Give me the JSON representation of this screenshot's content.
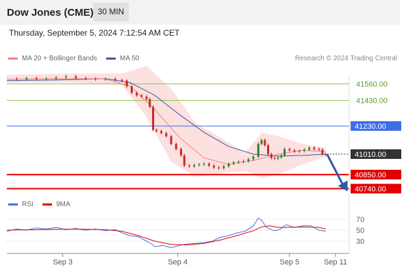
{
  "header": {
    "title": "Dow Jones (CME)",
    "timeframe": "30 MIN"
  },
  "timestamp": "Thursday, September 5, 2024 7:12:54 AM CET",
  "legend": {
    "ma20": "MA 20 + Bollinger Bands",
    "ma50": "MA 50",
    "rsi": "RSI",
    "ma9": "9MA"
  },
  "credit": "Research © 2024 Trading Central",
  "colors": {
    "resistance": "#8bc34a",
    "pivot": "#3b6fe8",
    "support": "#e00000",
    "current": "#333333",
    "ma20": "#f08080",
    "ma50": "#3b5b9a",
    "bands": "#fde0e0",
    "bull": "#2e7d32",
    "bear": "#c62828",
    "arrow": "#2e5aa8"
  },
  "chart_data": [
    {
      "type": "line",
      "subtype": "candlestick",
      "title": "Dow Jones (CME)",
      "x_ticks": [
        "Sep 3",
        "Sep 4",
        "Sep 5",
        "Sep 11"
      ],
      "y_ticks": [
        "41560.00",
        "41430.00",
        "41230.00",
        "41010.00",
        "40850.00",
        "40740.00"
      ],
      "ylim": [
        40700,
        41700
      ],
      "levels": [
        {
          "label": "41560.00",
          "value": 41560,
          "kind": "resistance"
        },
        {
          "label": "41430.00",
          "value": 41430,
          "kind": "resistance"
        },
        {
          "label": "41230.00",
          "value": 41230,
          "kind": "pivot"
        },
        {
          "label": "41010.00",
          "value": 41010,
          "kind": "current"
        },
        {
          "label": "40850.00",
          "value": 40850,
          "kind": "support"
        },
        {
          "label": "40740.00",
          "value": 40740,
          "kind": "support"
        }
      ],
      "forecast_arrow": {
        "from": 41010,
        "to": 40740,
        "direction": "down"
      },
      "price_path": [
        [
          0,
          41600
        ],
        [
          6,
          41595
        ],
        [
          12,
          41605
        ],
        [
          18,
          41598
        ],
        [
          24,
          41602
        ],
        [
          30,
          41610
        ],
        [
          36,
          41618
        ],
        [
          42,
          41605
        ],
        [
          48,
          41600
        ],
        [
          54,
          41595
        ],
        [
          60,
          41598
        ],
        [
          66,
          41590
        ],
        [
          70,
          41585
        ],
        [
          73,
          41540
        ],
        [
          76,
          41490
        ],
        [
          79,
          41470
        ],
        [
          82,
          41460
        ],
        [
          85,
          41440
        ],
        [
          87,
          41380
        ],
        [
          89,
          41200
        ],
        [
          91,
          41190
        ],
        [
          94,
          41175
        ],
        [
          97,
          41150
        ],
        [
          100,
          41090
        ],
        [
          103,
          41050
        ],
        [
          106,
          41000
        ],
        [
          108,
          40920
        ],
        [
          111,
          40915
        ],
        [
          114,
          40925
        ],
        [
          117,
          40930
        ],
        [
          120,
          40935
        ],
        [
          123,
          40920
        ],
        [
          126,
          40905
        ],
        [
          129,
          40900
        ],
        [
          132,
          40915
        ],
        [
          135,
          40935
        ],
        [
          138,
          40945
        ],
        [
          141,
          40950
        ],
        [
          144,
          40955
        ],
        [
          147,
          40970
        ],
        [
          150,
          40990
        ],
        [
          153,
          41090
        ],
        [
          155,
          41120
        ],
        [
          157,
          41080
        ],
        [
          159,
          41010
        ],
        [
          161,
          40980
        ],
        [
          163,
          40975
        ],
        [
          165,
          40985
        ],
        [
          167,
          41000
        ],
        [
          169,
          41050
        ],
        [
          172,
          41040
        ],
        [
          175,
          41030
        ],
        [
          178,
          41035
        ],
        [
          181,
          41045
        ],
        [
          184,
          41060
        ],
        [
          187,
          41050
        ],
        [
          190,
          41045
        ],
        [
          192,
          41010
        ],
        [
          194,
          41005
        ]
      ],
      "ma50_path": [
        [
          0,
          41585
        ],
        [
          30,
          41590
        ],
        [
          60,
          41600
        ],
        [
          75,
          41570
        ],
        [
          90,
          41470
        ],
        [
          105,
          41320
        ],
        [
          120,
          41180
        ],
        [
          135,
          41070
        ],
        [
          150,
          41010
        ],
        [
          165,
          40995
        ],
        [
          180,
          41000
        ],
        [
          194,
          41010
        ]
      ],
      "ma20_path": [
        [
          0,
          41595
        ],
        [
          30,
          41600
        ],
        [
          60,
          41598
        ],
        [
          75,
          41540
        ],
        [
          90,
          41360
        ],
        [
          105,
          41140
        ],
        [
          120,
          40980
        ],
        [
          135,
          40930
        ],
        [
          150,
          40960
        ],
        [
          165,
          41010
        ],
        [
          180,
          41040
        ],
        [
          194,
          41030
        ]
      ],
      "bb_upper": [
        [
          0,
          41630
        ],
        [
          40,
          41640
        ],
        [
          70,
          41640
        ],
        [
          85,
          41700
        ],
        [
          100,
          41520
        ],
        [
          115,
          41250
        ],
        [
          130,
          41140
        ],
        [
          145,
          41020
        ],
        [
          155,
          41180
        ],
        [
          165,
          41150
        ],
        [
          180,
          41090
        ],
        [
          194,
          41060
        ]
      ],
      "bb_lower": [
        [
          0,
          41570
        ],
        [
          40,
          41570
        ],
        [
          70,
          41550
        ],
        [
          85,
          41300
        ],
        [
          100,
          40950
        ],
        [
          115,
          40830
        ],
        [
          130,
          40860
        ],
        [
          145,
          40880
        ],
        [
          155,
          40820
        ],
        [
          165,
          40850
        ],
        [
          180,
          40930
        ],
        [
          194,
          40990
        ]
      ]
    },
    {
      "type": "line",
      "title": "RSI",
      "y_ticks": [
        "70",
        "50",
        "30"
      ],
      "ylim": [
        10,
        90
      ],
      "series": [
        {
          "name": "RSI",
          "points": [
            [
              0,
              48
            ],
            [
              6,
              52
            ],
            [
              12,
              50
            ],
            [
              18,
              54
            ],
            [
              24,
              52
            ],
            [
              30,
              55
            ],
            [
              36,
              51
            ],
            [
              42,
              53
            ],
            [
              48,
              50
            ],
            [
              54,
              52
            ],
            [
              60,
              49
            ],
            [
              66,
              51
            ],
            [
              70,
              45
            ],
            [
              75,
              40
            ],
            [
              80,
              38
            ],
            [
              85,
              30
            ],
            [
              88,
              25
            ],
            [
              90,
              20
            ],
            [
              95,
              22
            ],
            [
              100,
              18
            ],
            [
              105,
              22
            ],
            [
              110,
              25
            ],
            [
              115,
              26
            ],
            [
              120,
              27
            ],
            [
              125,
              30
            ],
            [
              130,
              37
            ],
            [
              135,
              40
            ],
            [
              140,
              45
            ],
            [
              145,
              48
            ],
            [
              150,
              58
            ],
            [
              153,
              72
            ],
            [
              155,
              68
            ],
            [
              158,
              55
            ],
            [
              160,
              52
            ],
            [
              163,
              49
            ],
            [
              166,
              51
            ],
            [
              170,
              60
            ],
            [
              175,
              55
            ],
            [
              180,
              58
            ],
            [
              185,
              58
            ],
            [
              190,
              50
            ],
            [
              194,
              48
            ]
          ]
        },
        {
          "name": "9MA",
          "points": [
            [
              0,
              50
            ],
            [
              20,
              51
            ],
            [
              40,
              52
            ],
            [
              60,
              51
            ],
            [
              70,
              48
            ],
            [
              80,
              40
            ],
            [
              90,
              30
            ],
            [
              100,
              24
            ],
            [
              110,
              23
            ],
            [
              120,
              26
            ],
            [
              130,
              32
            ],
            [
              140,
              40
            ],
            [
              150,
              49
            ],
            [
              155,
              56
            ],
            [
              160,
              58
            ],
            [
              165,
              55
            ],
            [
              170,
              55
            ],
            [
              180,
              56
            ],
            [
              190,
              55
            ],
            [
              194,
              52
            ]
          ]
        }
      ]
    }
  ]
}
